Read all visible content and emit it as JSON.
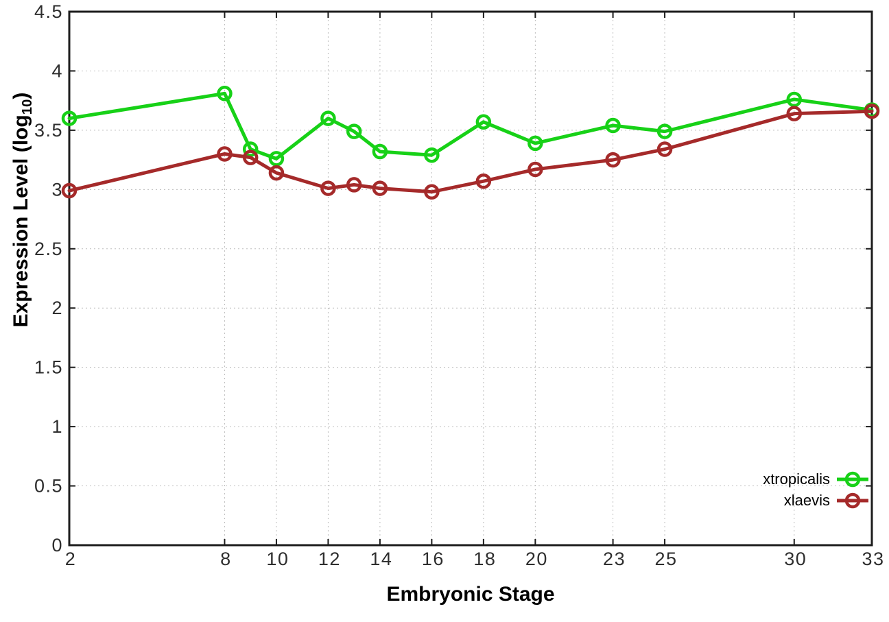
{
  "chart_data": {
    "type": "line",
    "title": "",
    "xlabel": "Embryonic Stage",
    "ylabel": "Expression Level (log10)",
    "ylabel_parts": {
      "main": "Expression Level (log",
      "sub": "10",
      "close": ")"
    },
    "x": [
      2,
      8,
      9,
      10,
      12,
      13,
      14,
      16,
      18,
      20,
      23,
      25,
      30,
      33
    ],
    "series": [
      {
        "name": "xtropicalis",
        "color": "#17d117",
        "values": [
          3.6,
          3.81,
          3.34,
          3.26,
          3.6,
          3.49,
          3.32,
          3.29,
          3.57,
          3.39,
          3.54,
          3.49,
          3.76,
          3.67
        ]
      },
      {
        "name": "xlaevis",
        "color": "#a52a2a",
        "values": [
          2.99,
          3.3,
          3.27,
          3.14,
          3.01,
          3.04,
          3.01,
          2.98,
          3.07,
          3.17,
          3.25,
          3.34,
          3.64,
          3.66
        ]
      }
    ],
    "xlim": [
      2,
      33
    ],
    "ylim": [
      0,
      4.5
    ],
    "xticks": [
      2,
      8,
      10,
      12,
      14,
      16,
      18,
      20,
      23,
      25,
      30,
      33
    ],
    "yticks": [
      0,
      0.5,
      1,
      1.5,
      2,
      2.5,
      3,
      3.5,
      4,
      4.5
    ],
    "grid": true,
    "legend_position": "bottom-right",
    "marker": "open-circle",
    "colors": {
      "border": "#1c1c1c",
      "grid": "#bdbdbd",
      "tick_label": "#2e2e2e"
    }
  }
}
